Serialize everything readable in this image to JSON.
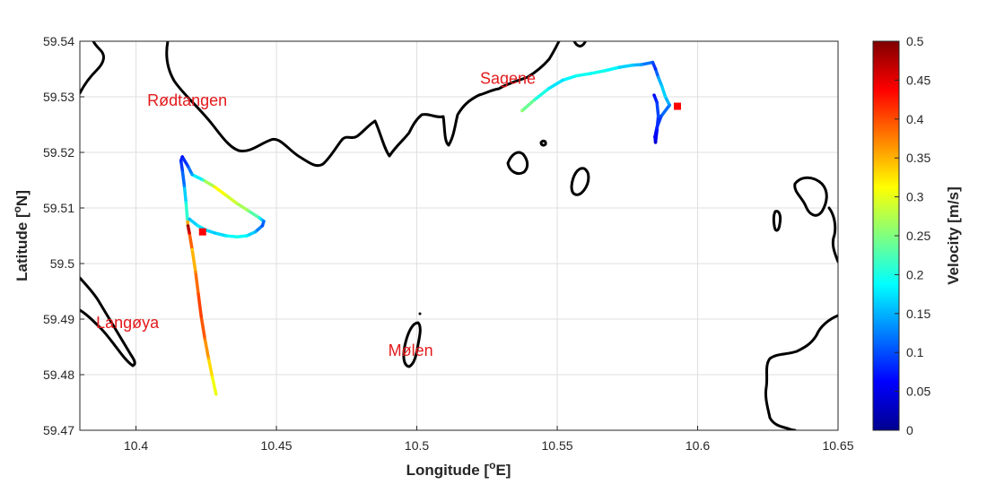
{
  "chart_data": {
    "type": "scatter",
    "xlabel": "Longitude [°E]",
    "ylabel": "Latitude [°N]",
    "xlim": [
      10.38,
      10.65
    ],
    "ylim": [
      59.47,
      59.54
    ],
    "xticks": [
      "10.4",
      "10.45",
      "10.5",
      "10.55",
      "10.6",
      "10.65"
    ],
    "yticks": [
      "59.47",
      "59.48",
      "59.49",
      "59.5",
      "59.51",
      "59.52",
      "59.53",
      "59.54"
    ],
    "grid": true,
    "colorbar": {
      "label": "Velocity [m/s]",
      "range": [
        0,
        0.5
      ],
      "ticks": [
        "0",
        "0.05",
        "0.1",
        "0.15",
        "0.2",
        "0.25",
        "0.3",
        "0.35",
        "0.4",
        "0.45",
        "0.5"
      ],
      "colormap": "jet"
    },
    "places": [
      {
        "name": "Rødtangen",
        "lon": 10.404,
        "lat": 59.5295
      },
      {
        "name": "Sagene",
        "lon": 10.5225,
        "lat": 59.5335
      },
      {
        "name": "Langøya",
        "lon": 10.3858,
        "lat": 59.4895
      },
      {
        "name": "Mølen",
        "lon": 10.4898,
        "lat": 59.4845
      }
    ],
    "markers": [
      {
        "lon": 10.4237,
        "lat": 59.5057,
        "color": "#ff0000"
      },
      {
        "lon": 10.5928,
        "lat": 59.5283,
        "color": "#ff0000"
      }
    ],
    "tracks": [
      {
        "points": [
          [
            10.4285,
            59.4765,
            0.3
          ],
          [
            10.4272,
            59.4795,
            0.31
          ],
          [
            10.4258,
            59.483,
            0.35
          ],
          [
            10.4245,
            59.4865,
            0.38
          ],
          [
            10.4232,
            59.4905,
            0.41
          ],
          [
            10.4222,
            59.4945,
            0.4
          ],
          [
            10.4212,
            59.4985,
            0.37
          ],
          [
            10.42,
            59.5025,
            0.33
          ],
          [
            10.419,
            59.5055,
            0.45
          ],
          [
            10.4185,
            59.5068,
            0.49
          ],
          [
            10.4183,
            59.508,
            0.22
          ],
          [
            10.4178,
            59.511,
            0.2
          ],
          [
            10.4172,
            59.514,
            0.13
          ],
          [
            10.4165,
            59.5168,
            0.1
          ],
          [
            10.416,
            59.5185,
            0.08
          ],
          [
            10.4165,
            59.5192,
            0.07
          ],
          [
            10.4185,
            59.5175,
            0.1
          ],
          [
            10.42,
            59.516,
            0.14
          ],
          [
            10.424,
            59.515,
            0.22
          ],
          [
            10.428,
            59.5138,
            0.32
          ],
          [
            10.432,
            59.5123,
            0.3
          ],
          [
            10.436,
            59.5108,
            0.28
          ],
          [
            10.44,
            59.5095,
            0.26
          ],
          [
            10.444,
            59.5082,
            0.2
          ],
          [
            10.4455,
            59.5076,
            0.12
          ],
          [
            10.445,
            59.5068,
            0.1
          ],
          [
            10.4425,
            59.5057,
            0.15
          ],
          [
            10.4395,
            59.505,
            0.18
          ],
          [
            10.436,
            59.5048,
            0.2
          ],
          [
            10.432,
            59.505,
            0.18
          ],
          [
            10.428,
            59.5055,
            0.16
          ],
          [
            10.425,
            59.506,
            0.17
          ],
          [
            10.422,
            59.5068,
            0.18
          ],
          [
            10.419,
            59.508,
            0.15
          ]
        ]
      },
      {
        "points": [
          [
            10.5375,
            59.5275,
            0.26
          ],
          [
            10.542,
            59.5295,
            0.22
          ],
          [
            10.547,
            59.5315,
            0.18
          ],
          [
            10.552,
            59.533,
            0.17
          ],
          [
            10.557,
            59.5338,
            0.2
          ],
          [
            10.562,
            59.5342,
            0.19
          ],
          [
            10.567,
            59.5347,
            0.2
          ],
          [
            10.572,
            59.5353,
            0.17
          ],
          [
            10.577,
            59.5357,
            0.16
          ],
          [
            10.58,
            59.5358,
            0.14
          ],
          [
            10.584,
            59.5362,
            0.1
          ],
          [
            10.585,
            59.535,
            0.08
          ],
          [
            10.586,
            59.5335,
            0.14
          ],
          [
            10.5872,
            59.532,
            0.16
          ],
          [
            10.5885,
            59.53,
            0.17
          ],
          [
            10.59,
            59.5285,
            0.13
          ],
          [
            10.587,
            59.5265,
            0.1
          ],
          [
            10.5855,
            59.5245,
            0.08
          ],
          [
            10.5848,
            59.5228,
            0.06
          ],
          [
            10.585,
            59.5218,
            0.04
          ],
          [
            10.5855,
            59.524,
            0.07
          ],
          [
            10.586,
            59.5265,
            0.1
          ],
          [
            10.5855,
            59.529,
            0.09
          ],
          [
            10.5845,
            59.5303,
            0.06
          ]
        ]
      }
    ]
  }
}
